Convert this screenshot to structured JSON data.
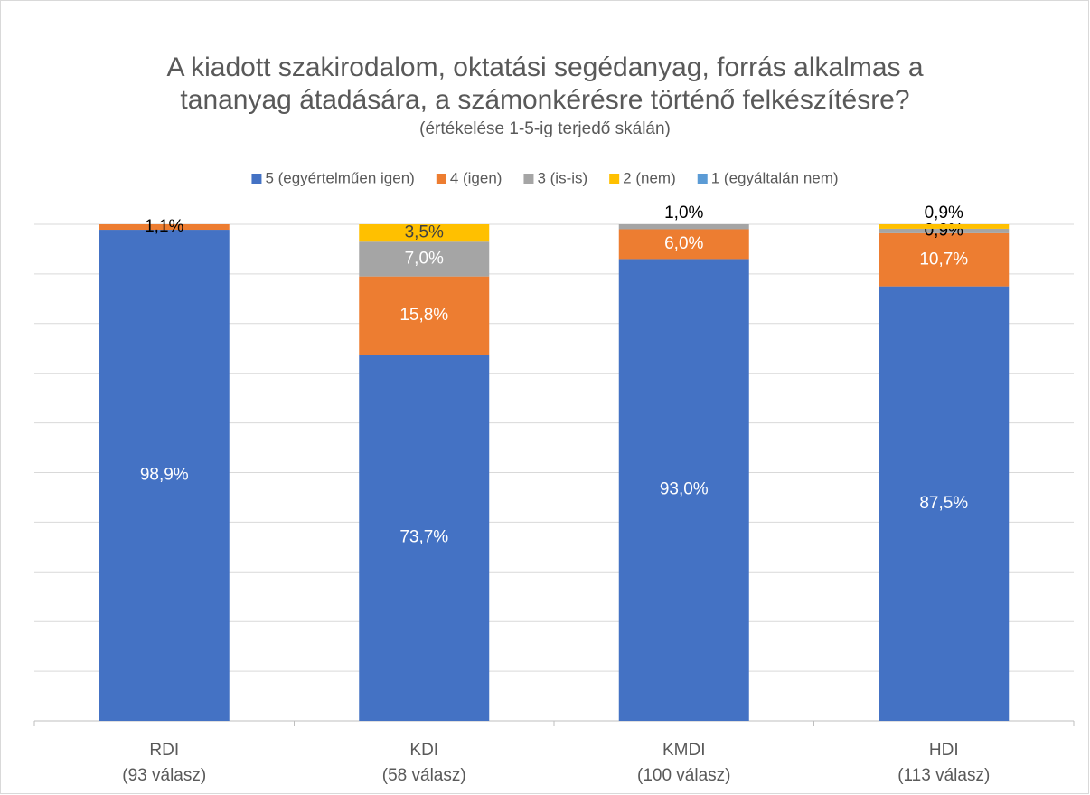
{
  "chart_data": {
    "type": "stacked_bar",
    "title": [
      "A kiadott szakirodalom, oktatási segédanyag, forrás alkalmas a",
      "tananyag átadására, a számonkérésre történő felkészítésre?"
    ],
    "subtitle": "(értékelése 1-5-ig terjedő skálán)",
    "categories": [
      [
        "RDI",
        "(93 válasz)"
      ],
      [
        "KDI",
        "(58 válasz)"
      ],
      [
        "KMDI",
        "(100 válasz)"
      ],
      [
        "HDI",
        "(113 válasz)"
      ]
    ],
    "series": [
      {
        "name": "5 (egyértelműen igen)",
        "color": "#4472c4",
        "values": [
          98.9,
          73.7,
          93.0,
          87.5
        ],
        "value_labels": [
          "98,9%",
          "73,7%",
          "93,0%",
          "87,5%"
        ]
      },
      {
        "name": "4 (igen)",
        "color": "#ed7d31",
        "values": [
          1.1,
          15.8,
          6.0,
          10.7
        ],
        "value_labels": [
          "1,1%",
          "15,8%",
          "6,0%",
          "10,7%"
        ]
      },
      {
        "name": "3 (is-is)",
        "color": "#a5a5a5",
        "values": [
          0,
          7.0,
          1.0,
          0.9
        ],
        "value_labels": [
          null,
          "7,0%",
          "1,0%",
          "0,9%"
        ]
      },
      {
        "name": "2 (nem)",
        "color": "#ffc000",
        "values": [
          0,
          3.5,
          0,
          0.9
        ],
        "value_labels": [
          null,
          "3,5%",
          null,
          "0,9%"
        ]
      },
      {
        "name": "1 (egyáltalán nem)",
        "color": "#5b9bd5",
        "values": [
          0,
          0,
          0,
          0
        ],
        "value_labels": [
          null,
          null,
          null,
          null
        ]
      }
    ],
    "ylim": [
      0,
      100
    ],
    "yticks": [
      0,
      10,
      20,
      30,
      40,
      50,
      60,
      70,
      80,
      90,
      100
    ],
    "grid": true,
    "legend": "top"
  }
}
